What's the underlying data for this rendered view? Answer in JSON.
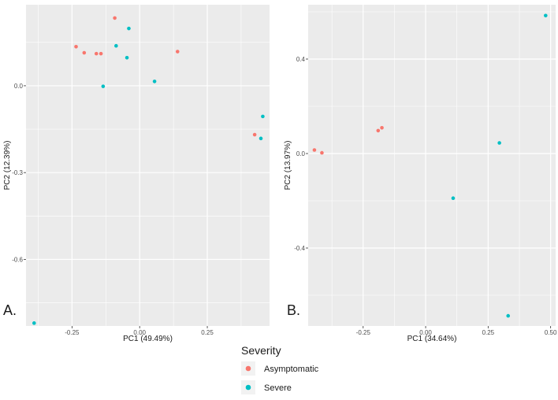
{
  "chart_data": [
    {
      "panel_label": "A.",
      "type": "scatter",
      "xlabel": "PC1 (49.49%)",
      "ylabel": "PC2 (12.39%)",
      "xlim": [
        -0.42,
        0.48
      ],
      "ylim": [
        -0.83,
        0.28
      ],
      "xticks": [
        -0.25,
        0.0,
        0.25
      ],
      "xtick_labels": [
        "-0.25",
        "0.00",
        "0.25"
      ],
      "yticks": [
        0.0,
        -0.3,
        -0.6
      ],
      "ytick_labels": [
        "0.0",
        "-0.3",
        "-0.6"
      ],
      "series": [
        {
          "name": "Asymptomatic",
          "points": [
            {
              "x": -0.235,
              "y": 0.135
            },
            {
              "x": -0.205,
              "y": 0.114
            },
            {
              "x": -0.16,
              "y": 0.111
            },
            {
              "x": -0.143,
              "y": 0.111
            },
            {
              "x": -0.092,
              "y": 0.234
            },
            {
              "x": 0.14,
              "y": 0.118
            },
            {
              "x": 0.425,
              "y": -0.169
            }
          ]
        },
        {
          "name": "Severe",
          "points": [
            {
              "x": -0.087,
              "y": 0.138
            },
            {
              "x": -0.04,
              "y": 0.198
            },
            {
              "x": -0.047,
              "y": 0.097
            },
            {
              "x": -0.135,
              "y": -0.002
            },
            {
              "x": 0.055,
              "y": 0.015
            },
            {
              "x": 0.455,
              "y": -0.106
            },
            {
              "x": 0.448,
              "y": -0.182
            },
            {
              "x": -0.39,
              "y": -0.82
            }
          ]
        }
      ]
    },
    {
      "panel_label": "B.",
      "type": "scatter",
      "xlabel": "PC1 (34.64%)",
      "ylabel": "PC2 (13.97%)",
      "xlim": [
        -0.47,
        0.52
      ],
      "ylim": [
        -0.73,
        0.63
      ],
      "xticks": [
        -0.25,
        0.0,
        0.25,
        0.5
      ],
      "xtick_labels": [
        "-0.25",
        "0.00",
        "0.25",
        "0.50"
      ],
      "yticks": [
        0.4,
        0.0,
        -0.4
      ],
      "ytick_labels": [
        "0.4",
        "0.0",
        "-0.4"
      ],
      "series": [
        {
          "name": "Asymptomatic",
          "points": [
            {
              "x": -0.445,
              "y": 0.015
            },
            {
              "x": -0.415,
              "y": 0.003
            },
            {
              "x": -0.19,
              "y": 0.097
            },
            {
              "x": -0.175,
              "y": 0.109
            }
          ]
        },
        {
          "name": "Severe",
          "points": [
            {
              "x": 0.11,
              "y": -0.189
            },
            {
              "x": 0.295,
              "y": 0.045
            },
            {
              "x": 0.33,
              "y": -0.687
            },
            {
              "x": 0.48,
              "y": 0.584
            }
          ]
        }
      ]
    }
  ],
  "legend": {
    "title": "Severity",
    "items": [
      {
        "label": "Asymptomatic",
        "color": "#F8766D"
      },
      {
        "label": "Severe",
        "color": "#00BFC4"
      }
    ]
  }
}
